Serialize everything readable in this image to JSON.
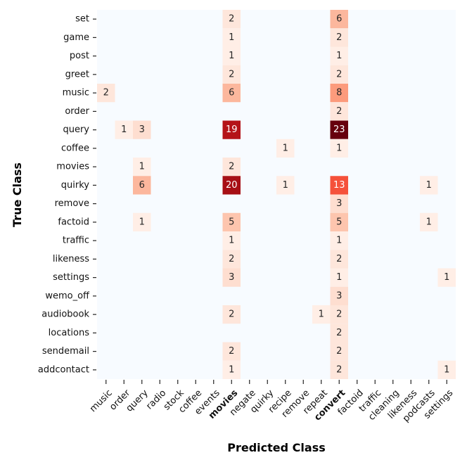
{
  "chart_data": {
    "type": "heatmap",
    "xlabel": "Predicted Class",
    "ylabel": "True Class",
    "x_categories": [
      "music",
      "order",
      "query",
      "radio",
      "stock",
      "coffee",
      "events",
      "movies",
      "negate",
      "quirky",
      "recipe",
      "remove",
      "repeat",
      "convert",
      "factoid",
      "traffic",
      "cleaning",
      "likeness",
      "podcasts",
      "settings"
    ],
    "y_categories": [
      "set",
      "game",
      "post",
      "greet",
      "music",
      "order",
      "query",
      "coffee",
      "movies",
      "quirky",
      "remove",
      "factoid",
      "traffic",
      "likeness",
      "settings",
      "wemo_off",
      "audiobook",
      "locations",
      "sendemail",
      "addcontact"
    ],
    "highlighted_x": [
      "movies",
      "convert"
    ],
    "highlight_color": "#ff0000",
    "colormap": "Reds",
    "background_color": "#f7fbff",
    "value_range": [
      0,
      23
    ],
    "cells": [
      {
        "y": "set",
        "x": "movies",
        "value": 2
      },
      {
        "y": "set",
        "x": "convert",
        "value": 6
      },
      {
        "y": "game",
        "x": "movies",
        "value": 1
      },
      {
        "y": "game",
        "x": "convert",
        "value": 2
      },
      {
        "y": "post",
        "x": "movies",
        "value": 1
      },
      {
        "y": "post",
        "x": "convert",
        "value": 1
      },
      {
        "y": "greet",
        "x": "movies",
        "value": 2
      },
      {
        "y": "greet",
        "x": "convert",
        "value": 2
      },
      {
        "y": "music",
        "x": "music",
        "value": 2
      },
      {
        "y": "music",
        "x": "movies",
        "value": 6
      },
      {
        "y": "music",
        "x": "convert",
        "value": 8
      },
      {
        "y": "order",
        "x": "convert",
        "value": 2
      },
      {
        "y": "query",
        "x": "order",
        "value": 1
      },
      {
        "y": "query",
        "x": "query",
        "value": 3
      },
      {
        "y": "query",
        "x": "movies",
        "value": 19
      },
      {
        "y": "query",
        "x": "convert",
        "value": 23
      },
      {
        "y": "coffee",
        "x": "recipe",
        "value": 1
      },
      {
        "y": "coffee",
        "x": "convert",
        "value": 1
      },
      {
        "y": "movies",
        "x": "query",
        "value": 1
      },
      {
        "y": "movies",
        "x": "movies",
        "value": 2
      },
      {
        "y": "quirky",
        "x": "query",
        "value": 6
      },
      {
        "y": "quirky",
        "x": "movies",
        "value": 20
      },
      {
        "y": "quirky",
        "x": "recipe",
        "value": 1
      },
      {
        "y": "quirky",
        "x": "convert",
        "value": 13
      },
      {
        "y": "quirky",
        "x": "podcasts",
        "value": 1
      },
      {
        "y": "remove",
        "x": "convert",
        "value": 3
      },
      {
        "y": "factoid",
        "x": "query",
        "value": 1
      },
      {
        "y": "factoid",
        "x": "movies",
        "value": 5
      },
      {
        "y": "factoid",
        "x": "convert",
        "value": 5
      },
      {
        "y": "factoid",
        "x": "podcasts",
        "value": 1
      },
      {
        "y": "traffic",
        "x": "movies",
        "value": 1
      },
      {
        "y": "traffic",
        "x": "convert",
        "value": 1
      },
      {
        "y": "likeness",
        "x": "movies",
        "value": 2
      },
      {
        "y": "likeness",
        "x": "convert",
        "value": 2
      },
      {
        "y": "settings",
        "x": "movies",
        "value": 3
      },
      {
        "y": "settings",
        "x": "convert",
        "value": 1
      },
      {
        "y": "settings",
        "x": "settings",
        "value": 1
      },
      {
        "y": "wemo_off",
        "x": "convert",
        "value": 3
      },
      {
        "y": "audiobook",
        "x": "movies",
        "value": 2
      },
      {
        "y": "audiobook",
        "x": "repeat",
        "value": 1
      },
      {
        "y": "audiobook",
        "x": "convert",
        "value": 2
      },
      {
        "y": "locations",
        "x": "convert",
        "value": 2
      },
      {
        "y": "sendemail",
        "x": "movies",
        "value": 2
      },
      {
        "y": "sendemail",
        "x": "convert",
        "value": 2
      },
      {
        "y": "addcontact",
        "x": "movies",
        "value": 1
      },
      {
        "y": "addcontact",
        "x": "convert",
        "value": 2
      },
      {
        "y": "addcontact",
        "x": "settings",
        "value": 1
      }
    ]
  }
}
